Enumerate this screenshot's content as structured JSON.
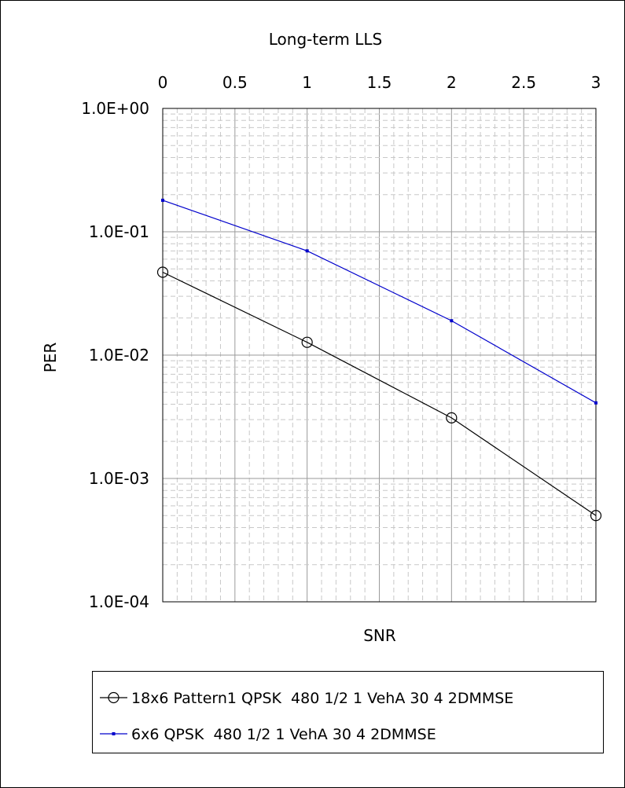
{
  "chart_data": {
    "type": "line",
    "title": "Long-term LLS",
    "xlabel": "SNR",
    "ylabel": "PER",
    "x_ticks": [
      "0",
      "0.5",
      "1",
      "1.5",
      "2",
      "2.5",
      "3"
    ],
    "x_tick_values": [
      0,
      0.5,
      1,
      1.5,
      2,
      2.5,
      3
    ],
    "xlim": [
      0,
      3
    ],
    "x_axis_position": "top",
    "y_scale": "log",
    "ylim": [
      0.0001,
      1
    ],
    "y_ticks": [
      "1.0E+00",
      "1.0E-01",
      "1.0E-02",
      "1.0E-03",
      "1.0E-04"
    ],
    "y_tick_values": [
      1,
      0.1,
      0.01,
      0.001,
      0.0001
    ],
    "grid": true,
    "legend_position": "bottom",
    "series": [
      {
        "name": "18x6 Pattern1 QPSK  480 1/2 1 VehA 30 4 2DMMSE",
        "color": "#000000",
        "marker": "circle",
        "x": [
          0,
          1,
          2,
          3
        ],
        "y": [
          0.047,
          0.0127,
          0.0031,
          0.0005
        ]
      },
      {
        "name": "6x6 QPSK  480 1/2 1 VehA 30 4 2DMMSE",
        "color": "#0000cc",
        "marker": "square",
        "x": [
          0,
          1,
          2,
          3
        ],
        "y": [
          0.18,
          0.07,
          0.019,
          0.0041
        ]
      }
    ]
  }
}
